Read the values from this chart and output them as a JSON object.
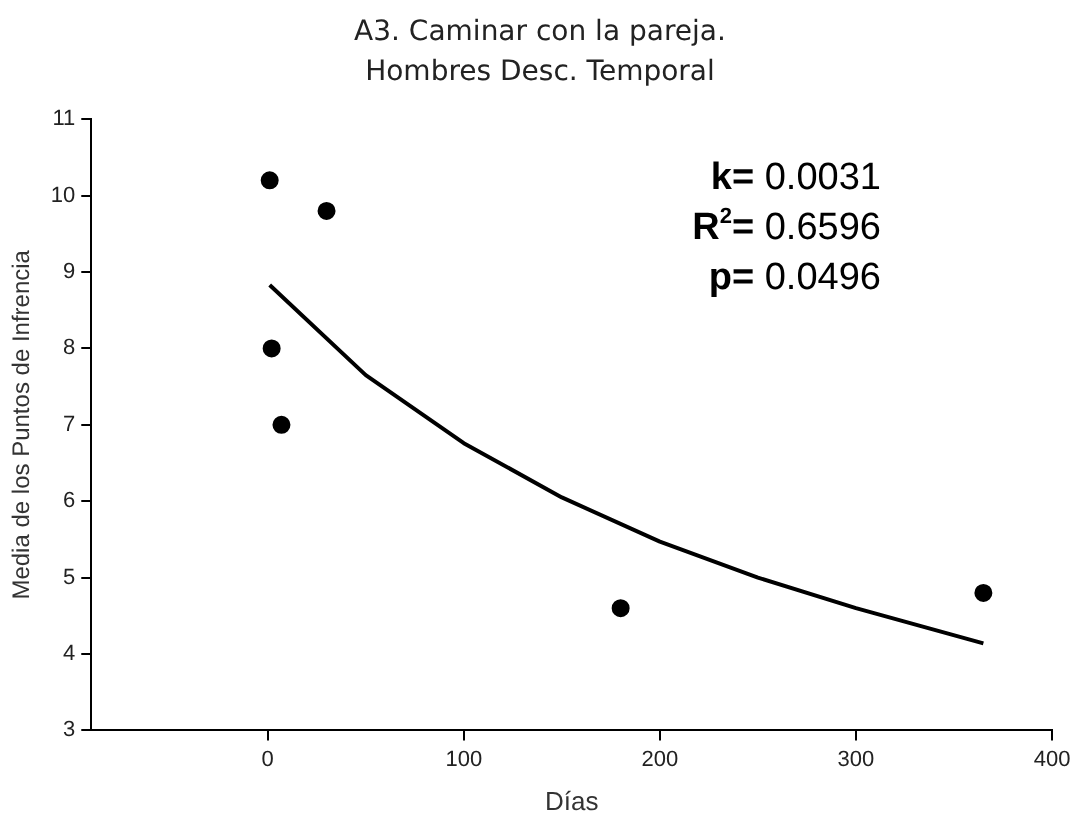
{
  "chart_data": {
    "type": "scatter",
    "title": "A3. Caminar con la pareja.\nHombres Desc. Temporal",
    "xlabel": "Días",
    "ylabel": "Media de los Puntos de Infrencia",
    "xlim": [
      -90,
      400
    ],
    "xticks": [
      0,
      100,
      200,
      300,
      400
    ],
    "ylim": [
      3,
      11
    ],
    "yticks": [
      3,
      4,
      5,
      6,
      7,
      8,
      9,
      10,
      11
    ],
    "grid": false,
    "legend": false,
    "marker": "circle",
    "series": [
      {
        "type": "scatter",
        "color": "#000000",
        "x": [
          1,
          30,
          2,
          7,
          180,
          365
        ],
        "values": [
          10.2,
          9.8,
          8.0,
          7.0,
          4.6,
          4.8
        ]
      },
      {
        "type": "line",
        "color": "#000000",
        "line_style": "solid",
        "marker": "none",
        "x": [
          1,
          50,
          100,
          150,
          200,
          250,
          300,
          365
        ],
        "values": [
          8.83,
          7.65,
          6.76,
          6.05,
          5.47,
          5.0,
          4.6,
          4.14
        ]
      }
    ],
    "annotations": [
      "k= 0.0031",
      "R$^{2}$= 0.6596",
      "p= 0.0496"
    ]
  }
}
